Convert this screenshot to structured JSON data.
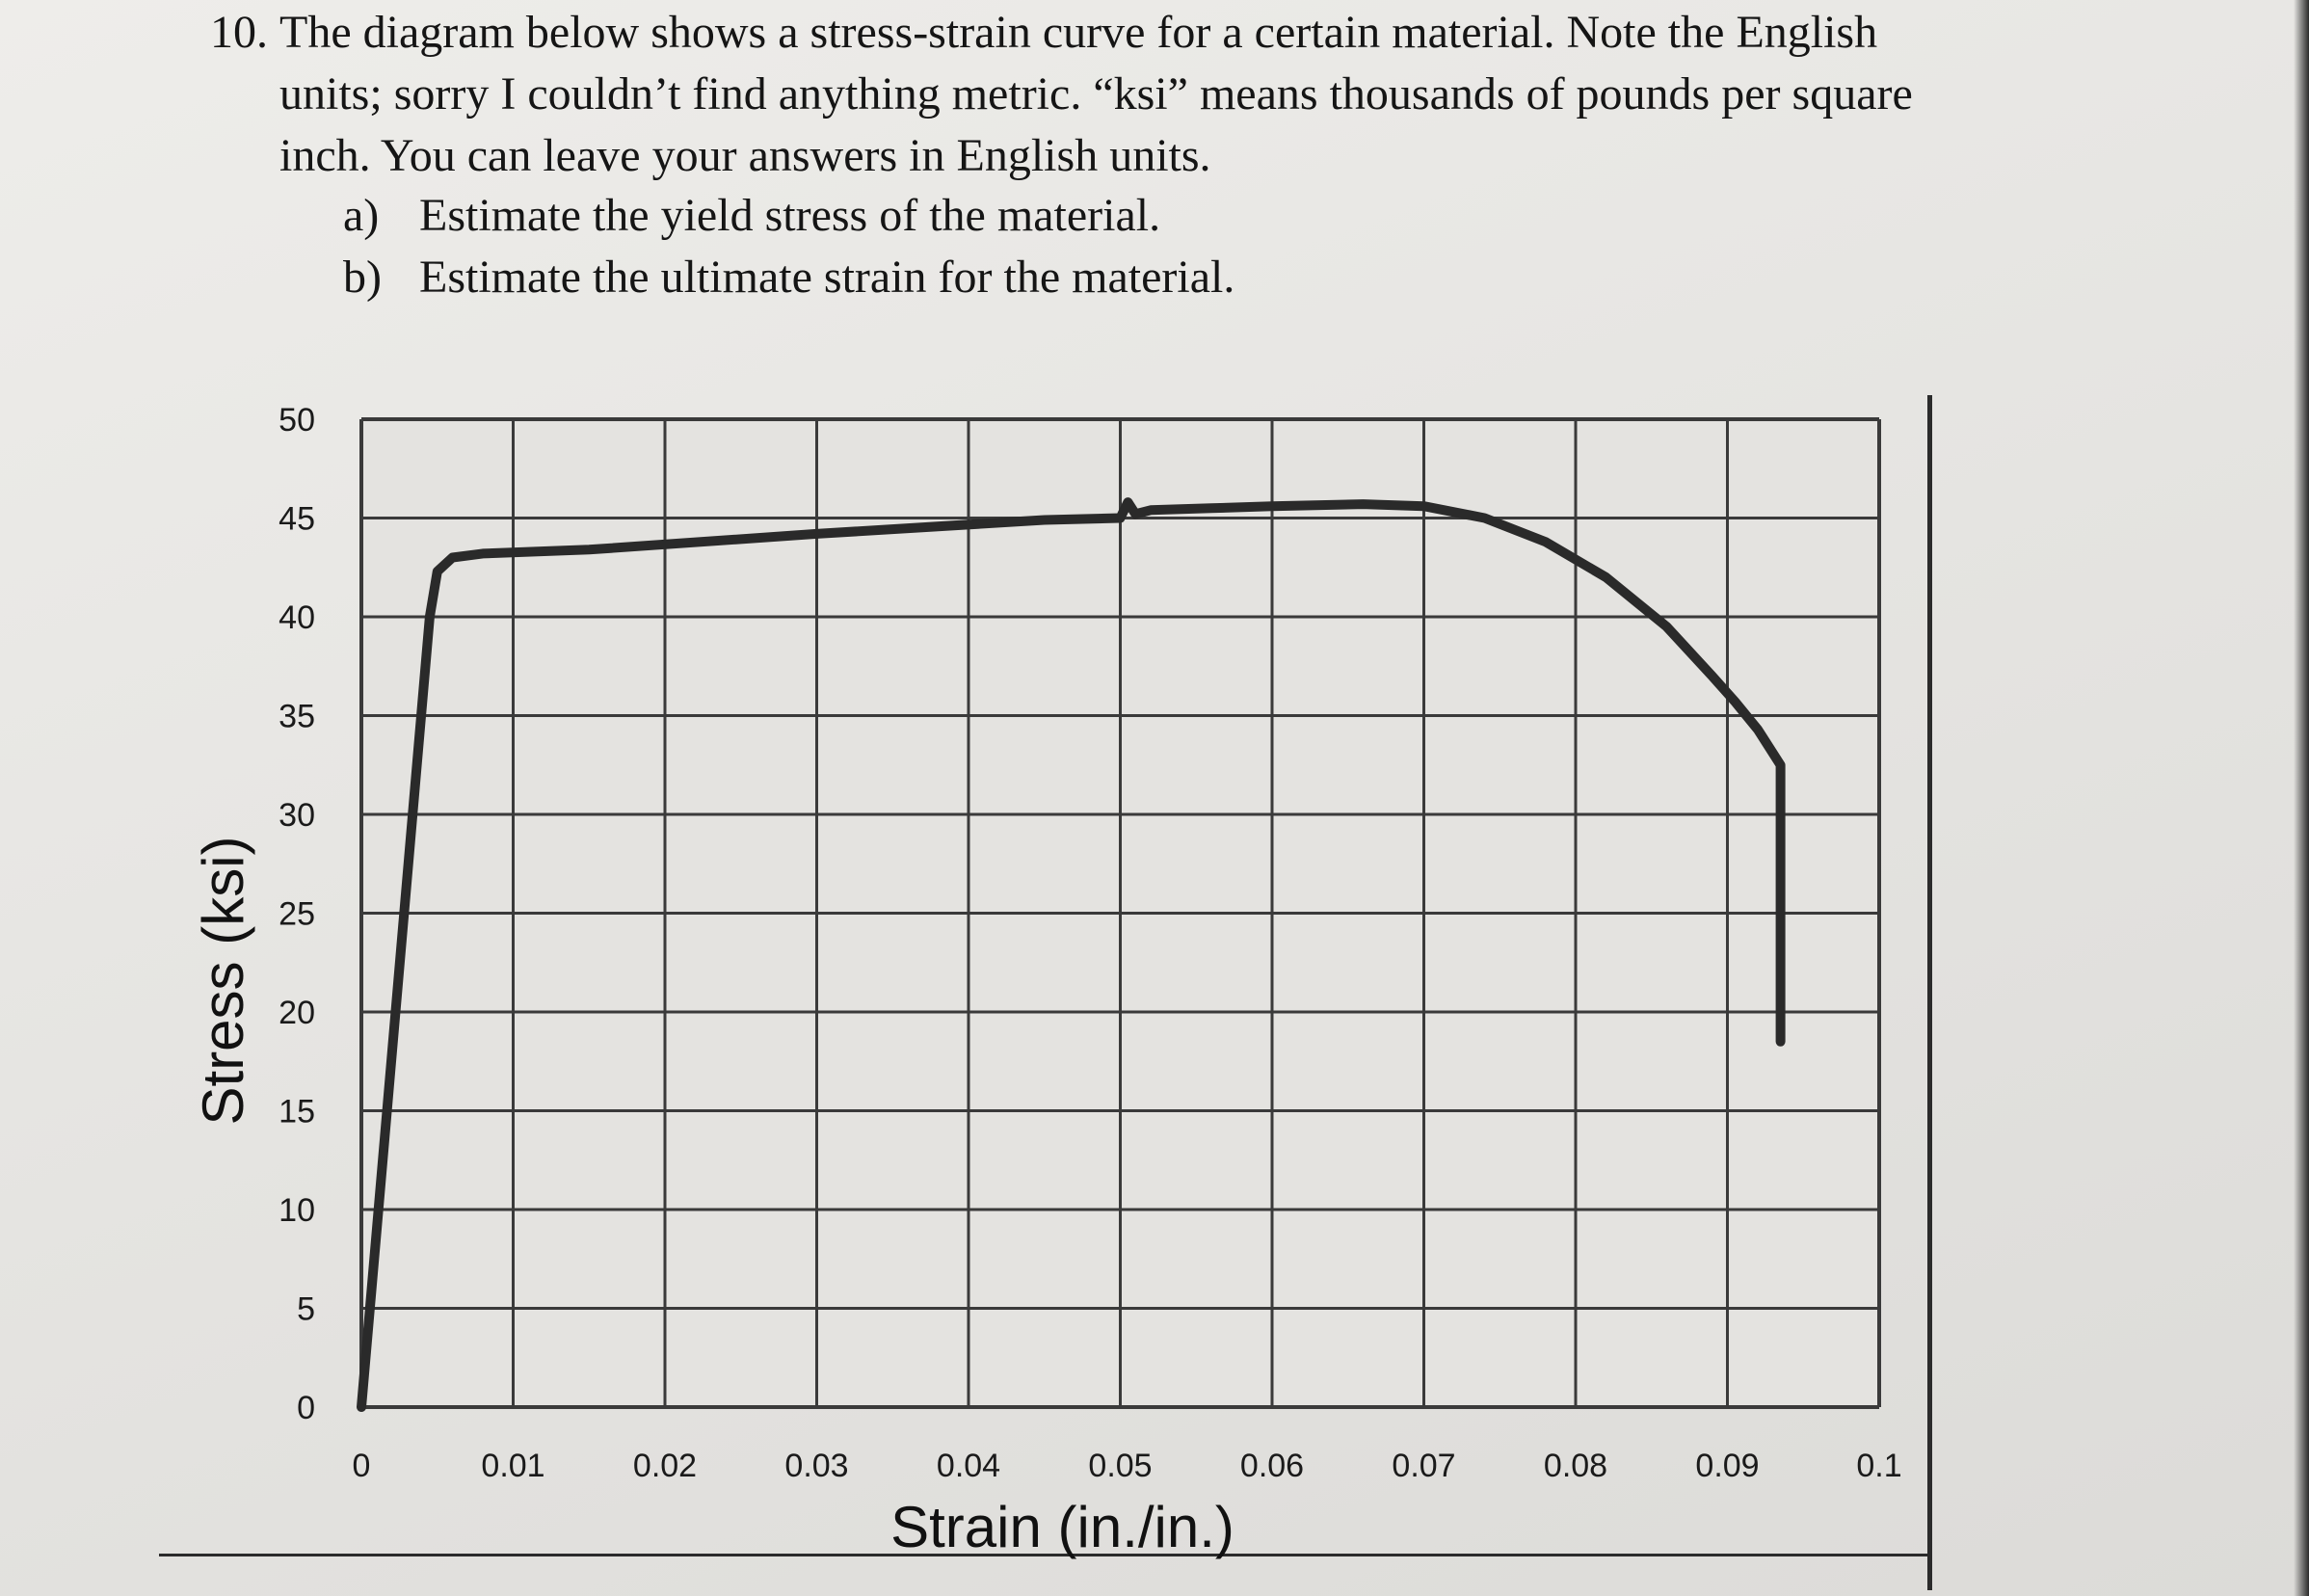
{
  "question": {
    "number": "10.",
    "lines": [
      "The diagram below shows a stress-strain curve for a certain material. Note the English",
      "units; sorry I couldn’t find anything metric. “ksi” means thousands of pounds per square",
      "inch. You can leave your answers in English units."
    ],
    "parts": [
      {
        "letter": "a)",
        "text": "Estimate the yield stress of the material."
      },
      {
        "letter": "b)",
        "text": "Estimate the ultimate strain for the material."
      }
    ]
  },
  "chart_data": {
    "type": "line",
    "title": "",
    "xlabel": "Strain (in./in.)",
    "ylabel": "Stress (ksi)",
    "xlim": [
      0,
      0.1
    ],
    "ylim": [
      0,
      50
    ],
    "xticks": [
      "0",
      "0.01",
      "0.02",
      "0.03",
      "0.04",
      "0.05",
      "0.06",
      "0.07",
      "0.08",
      "0.09",
      "0.1"
    ],
    "yticks": [
      "0",
      "5",
      "10",
      "15",
      "20",
      "25",
      "30",
      "35",
      "40",
      "45",
      "50"
    ],
    "grid": true,
    "series": [
      {
        "x": [
          0,
          0.0045,
          0.005,
          0.006,
          0.008,
          0.015,
          0.03,
          0.045,
          0.05,
          0.0505,
          0.051,
          0.052,
          0.056,
          0.06,
          0.066,
          0.07,
          0.074,
          0.078,
          0.082,
          0.086,
          0.089,
          0.0905,
          0.092,
          0.0935,
          0.0935
        ],
        "y": [
          0,
          40,
          42.3,
          43,
          43.2,
          43.4,
          44.2,
          44.9,
          45,
          45.8,
          45.2,
          45.4,
          45.5,
          45.6,
          45.7,
          45.6,
          45,
          43.8,
          42,
          39.5,
          37,
          35.7,
          34.3,
          32.5,
          18.5
        ]
      }
    ]
  }
}
